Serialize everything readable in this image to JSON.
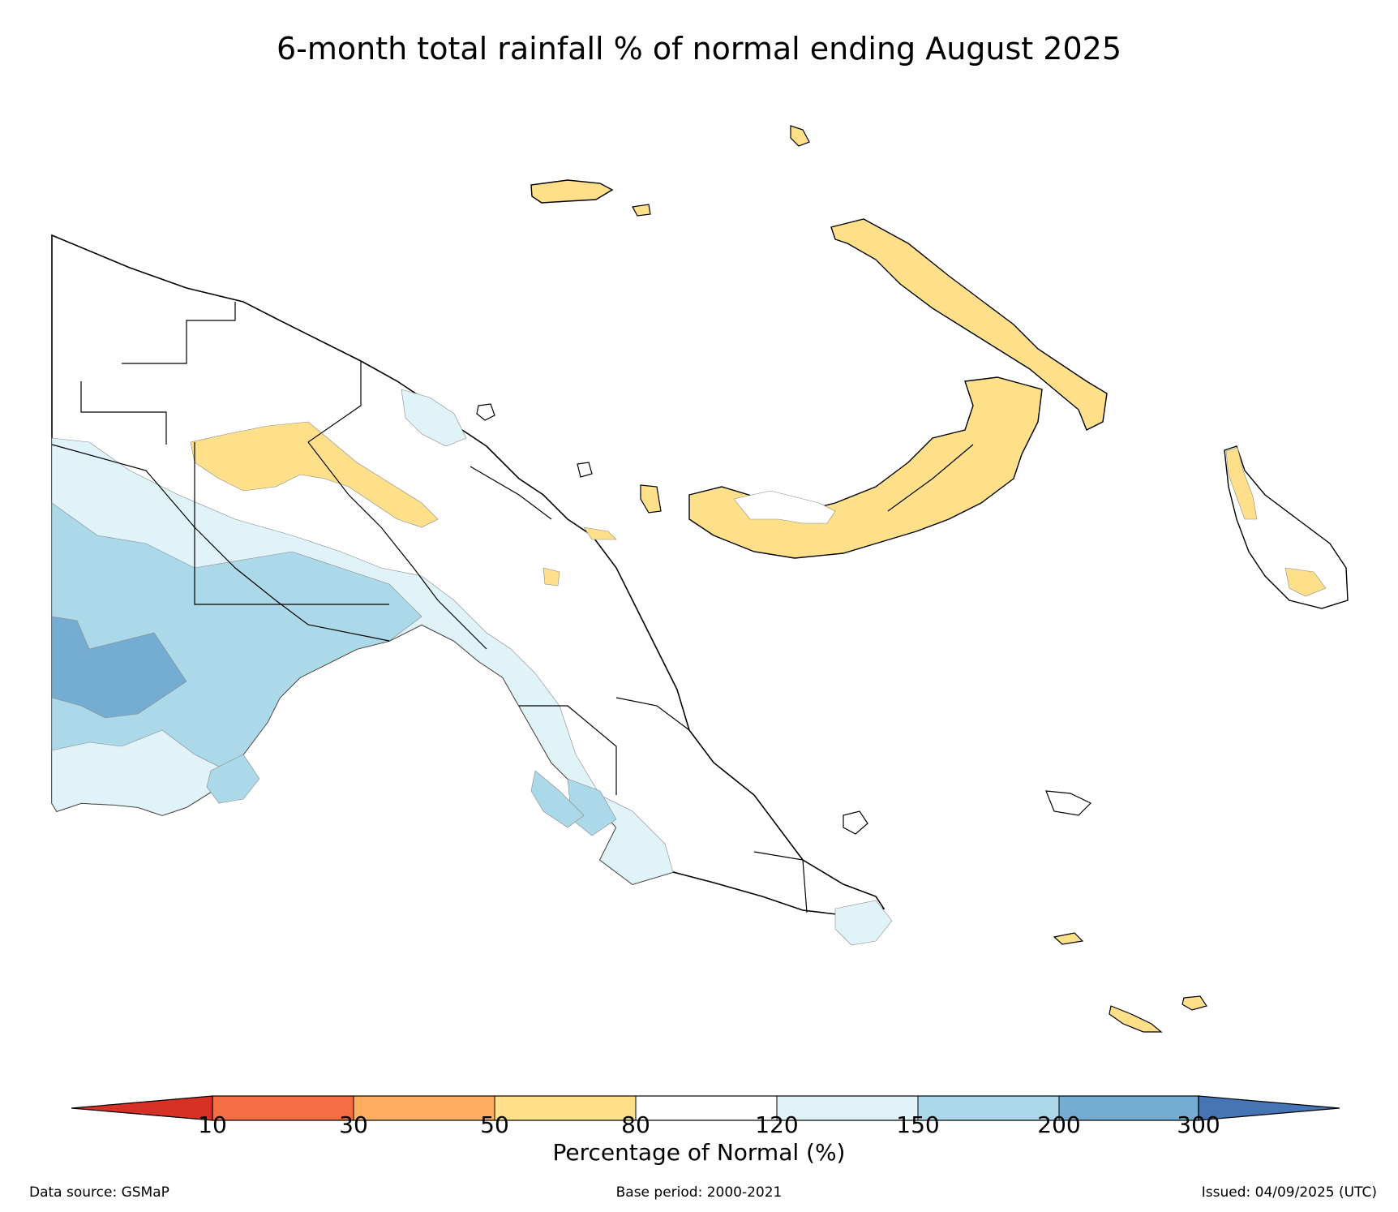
{
  "title": "6-month total rainfall % of normal ending August 2025",
  "colors": {
    "dry_10": "#d73027",
    "dry_30": "#f46d43",
    "dry_50": "#fdae61",
    "dry_80": "#fee08b",
    "normal": "#ffffff",
    "wet_120": "#e0f3f8",
    "wet_150": "#abd9e9",
    "wet_200": "#74add1",
    "wet_300": "#4575b4"
  },
  "colorbar": {
    "ticks": [
      "10",
      "30",
      "50",
      "80",
      "120",
      "150",
      "200",
      "300"
    ],
    "label": "Percentage of Normal (%)"
  },
  "footer": {
    "source": "Data source: GSMaP",
    "base_period": "Base period: 2000-2021",
    "issued": "Issued: 04/09/2025 (UTC)"
  }
}
